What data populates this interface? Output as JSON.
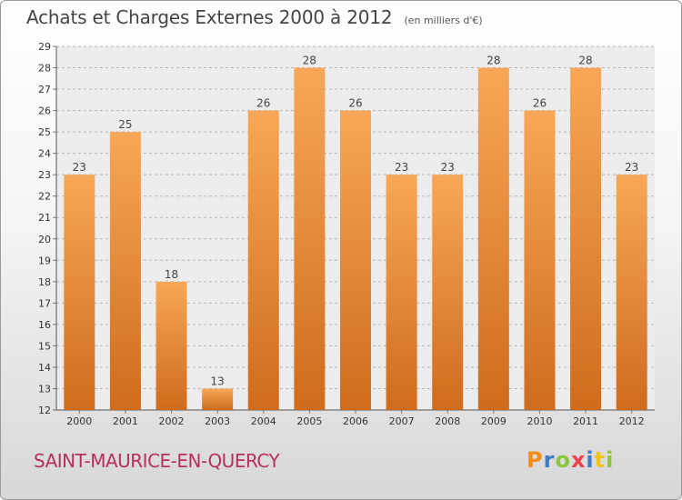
{
  "header": {
    "title": "Achats et Charges Externes 2000 à 2012",
    "unit": "(en milliers d'€)"
  },
  "footer": {
    "place": "SAINT-MAURICE-EN-QUERCY",
    "brand": "Proxiti"
  },
  "colors": {
    "bar_top": "#f7a757",
    "bar_bottom": "#cf6b1d",
    "place_text": "#b8305a",
    "brand_letters": [
      "#f28c1e",
      "#3f7bc6",
      "#8cc63f",
      "#e8424a",
      "#3f7bc6",
      "#f2c318",
      "#8cc63f"
    ]
  },
  "chart_data": {
    "type": "bar",
    "title": "Achats et Charges Externes 2000 à 2012",
    "subtitle": "(en milliers d'€)",
    "xlabel": "",
    "ylabel": "",
    "categories": [
      "2000",
      "2001",
      "2002",
      "2003",
      "2004",
      "2005",
      "2006",
      "2007",
      "2008",
      "2009",
      "2010",
      "2011",
      "2012"
    ],
    "values": [
      23,
      25,
      18,
      13,
      26,
      28,
      26,
      23,
      23,
      28,
      26,
      28,
      23
    ],
    "ylim": [
      12,
      29
    ],
    "yticks": [
      12,
      13,
      14,
      15,
      16,
      17,
      18,
      19,
      20,
      21,
      22,
      23,
      24,
      25,
      26,
      27,
      28,
      29
    ],
    "grid": "horizontal dashed",
    "data_labels": true
  }
}
